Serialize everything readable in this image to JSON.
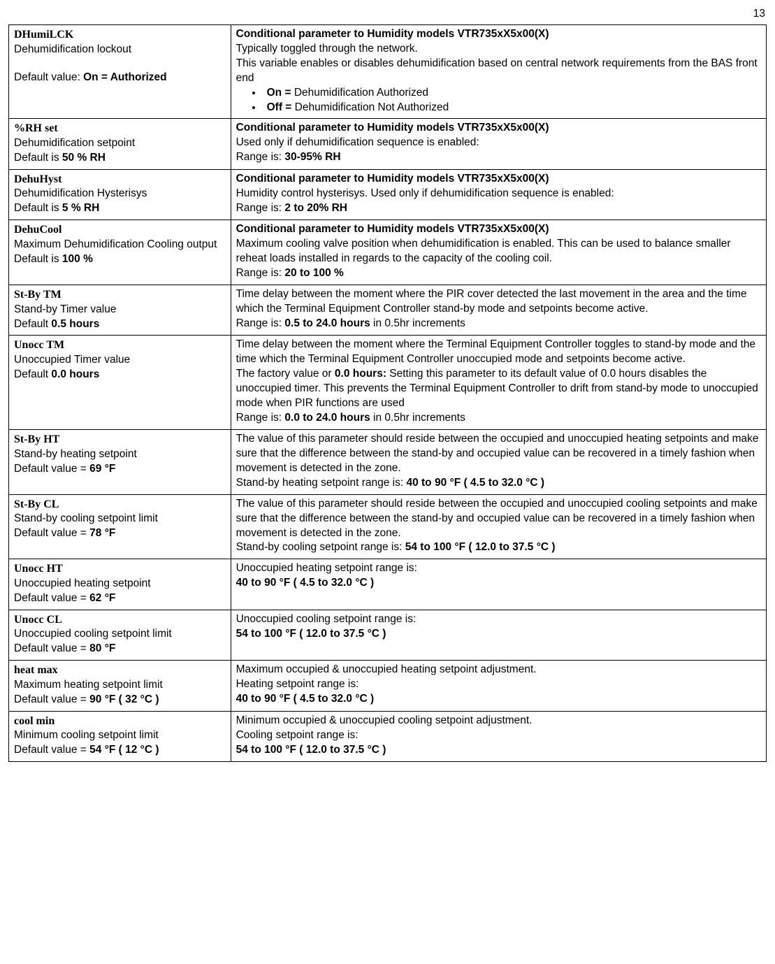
{
  "page_number": "13",
  "rows": [
    {
      "left": {
        "name": "DHumiLCK",
        "desc": "Dehumidification lockout",
        "blank_gap": true,
        "default_label": "Default value: ",
        "default_value": "On = Authorized"
      },
      "right": {
        "heading": "Conditional parameter to Humidity models VTR735xX5x00(X)",
        "lines": [
          "Typically toggled through the network.",
          "This variable enables or disables dehumidification based on central network requirements from the BAS front end"
        ],
        "bullets": [
          {
            "bold": "On = ",
            "rest": "Dehumidification Authorized"
          },
          {
            "bold": "Off = ",
            "rest": "Dehumidification Not Authorized"
          }
        ]
      }
    },
    {
      "left": {
        "name": "%RH set",
        "desc": "Dehumidification setpoint",
        "default_label": "Default is ",
        "default_value": "50 % RH"
      },
      "right": {
        "heading": "Conditional parameter to Humidity models VTR735xX5x00(X)",
        "lines": [
          "Used only if dehumidification sequence is enabled:"
        ],
        "range_prefix": "Range is: ",
        "range_bold": "30-95% RH"
      }
    },
    {
      "left": {
        "name": "DehuHyst",
        "desc": "Dehumidification Hysterisys",
        "default_label": "Default is ",
        "default_value": "5 % RH"
      },
      "right": {
        "heading": "Conditional parameter to Humidity models VTR735xX5x00(X)",
        "lines": [
          "Humidity control hysterisys. Used only if dehumidification sequence is enabled:"
        ],
        "range_prefix": "Range is: ",
        "range_bold": "2 to 20% RH"
      }
    },
    {
      "left": {
        "name": "DehuCool",
        "desc": "Maximum Dehumidification Cooling output",
        "default_label": "Default is ",
        "default_value": "100 %"
      },
      "right": {
        "heading": "Conditional parameter to Humidity models VTR735xX5x00(X)",
        "lines": [
          "Maximum cooling valve position when dehumidification is enabled. This can be used to balance smaller reheat loads installed in regards to the capacity of the cooling coil."
        ],
        "range_prefix": "Range is: ",
        "range_bold": "20 to 100 %"
      }
    },
    {
      "left": {
        "name": "St-By TM",
        "desc": "Stand-by Timer value",
        "default_label": "Default ",
        "default_value": "0.5 hours"
      },
      "right": {
        "lines": [
          "Time delay between the moment where the PIR cover detected the last movement in the area and the time which the Terminal Equipment Controller stand-by mode and setpoints become active."
        ],
        "range_prefix": "Range is: ",
        "range_bold": "0.5 to 24.0 hours",
        "range_suffix": " in 0.5hr increments"
      }
    },
    {
      "left": {
        "name": "Unocc TM",
        "desc": "Unoccupied Timer value",
        "default_label": "Default ",
        "default_value": "0.0 hours"
      },
      "right": {
        "complex_unocc_tm": true,
        "l1": "Time delay between the moment where the Terminal Equipment Controller toggles to stand-by mode and the time which the Terminal Equipment Controller unoccupied mode and setpoints become active.",
        "l2a": "The factory value or ",
        "l2b": "0.0 hours:",
        "l2c": " Setting this parameter to its default value of 0.0 hours disables the unoccupied timer. This prevents the Terminal Equipment Controller to drift from stand-by mode to unoccupied mode when PIR functions are used",
        "range_prefix": "Range is: ",
        "range_bold": "0.0 to 24.0 hours",
        "range_suffix": " in 0.5hr increments"
      }
    },
    {
      "left": {
        "name": "St-By HT",
        "desc": "Stand-by heating setpoint",
        "default_label": "Default value =  ",
        "default_value": "69 °F"
      },
      "right": {
        "lines": [
          "The value of this parameter should reside between the occupied and unoccupied heating setpoints and make sure that the difference between the stand-by and occupied value can be recovered in a timely fashion when movement is detected in the zone."
        ],
        "range_prefix": "Stand-by heating setpoint range is: ",
        "range_bold": "40 to 90 °F ( 4.5 to 32.0 °C )"
      }
    },
    {
      "left": {
        "name": "St-By CL",
        "desc": "Stand-by cooling setpoint limit",
        "default_label": "Default value = ",
        "default_value": "78 °F"
      },
      "right": {
        "lines": [
          "The value of this parameter should reside between the occupied and unoccupied cooling setpoints and make sure that the difference between the stand-by and occupied value can be recovered in a timely fashion when movement is detected in the zone."
        ],
        "range_prefix": "Stand-by cooling setpoint range is: ",
        "range_bold": "54 to 100 °F ( 12.0 to 37.5 °C )"
      }
    },
    {
      "left": {
        "name": "Unocc HT",
        "desc": "Unoccupied heating setpoint",
        "default_label": "Default value =  ",
        "default_value": "62 °F"
      },
      "right": {
        "lines": [
          "Unoccupied heating setpoint range is:"
        ],
        "range_bold_only": "40 to 90 °F ( 4.5 to 32.0 °C )"
      }
    },
    {
      "left": {
        "name": "Unocc CL",
        "desc": "Unoccupied cooling setpoint limit",
        "default_label": "Default value = ",
        "default_value": "80 °F"
      },
      "right": {
        "lines": [
          "Unoccupied cooling setpoint range is:"
        ],
        "range_bold_only": "54 to 100 °F ( 12.0 to 37.5 °C )"
      }
    },
    {
      "left": {
        "name": "heat max",
        "desc": "Maximum heating setpoint limit",
        "default_label": "Default value = ",
        "default_value": "90 °F ( 32 °C )"
      },
      "right": {
        "lines": [
          "Maximum occupied & unoccupied heating setpoint adjustment.",
          "Heating setpoint range is:"
        ],
        "range_bold_only": "40 to 90 °F ( 4.5 to 32.0 °C )"
      }
    },
    {
      "left": {
        "name": "cool min",
        "desc": "Minimum cooling setpoint limit",
        "default_label": "Default value = ",
        "default_value": "54 °F ( 12 °C )"
      },
      "right": {
        "lines": [
          "Minimum occupied & unoccupied cooling setpoint adjustment.",
          "Cooling setpoint range is:"
        ],
        "range_bold_only": "54 to 100 °F ( 12.0 to 37.5 °C )"
      }
    }
  ]
}
